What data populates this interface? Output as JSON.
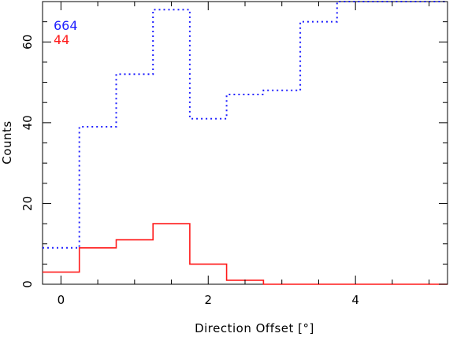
{
  "chart_data": {
    "type": "line",
    "drawstyle": "steps",
    "xlabel": "Direction Offset [°]",
    "ylabel": "Counts",
    "xlim": [
      -0.25,
      5.25
    ],
    "ylim": [
      0,
      70
    ],
    "xticks": [
      0,
      2,
      4
    ],
    "xtick_labels": [
      "0",
      "2",
      "4"
    ],
    "yticks": [
      0,
      20,
      40,
      60
    ],
    "ytick_labels": [
      "0",
      "20",
      "40",
      "60"
    ],
    "bin_edges": [
      -0.25,
      0.25,
      0.75,
      1.25,
      1.75,
      2.25,
      2.75,
      3.25,
      3.75,
      4.25,
      4.75,
      5.25
    ],
    "series": [
      {
        "name": "664",
        "color": "#2020ff",
        "line_style": "dotted",
        "values": [
          9,
          39,
          52,
          68,
          41,
          47,
          48,
          65,
          70,
          70,
          70
        ]
      },
      {
        "name": "44",
        "color": "#ff1a1a",
        "line_style": "solid",
        "values": [
          3,
          9,
          11,
          15,
          5,
          1,
          0,
          0,
          0,
          0,
          0
        ]
      }
    ],
    "legend_position": "top-left",
    "grid": false
  }
}
